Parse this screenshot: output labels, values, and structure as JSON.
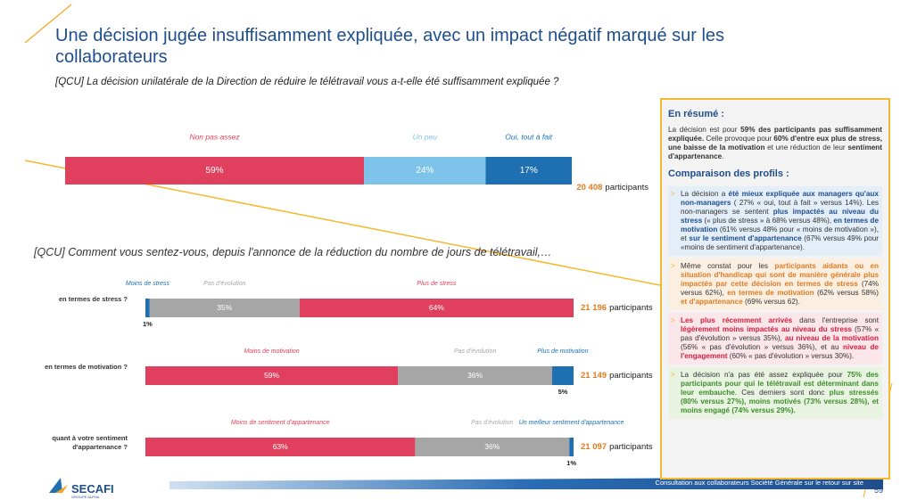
{
  "header": {
    "title": "Une décision jugée insuffisamment expliquée, avec un impact négatif marqué sur les collaborateurs",
    "question": "[QCU] La décision unilatérale de la Direction de réduire le télétravail vous a-t-elle été suffisamment expliquée ?"
  },
  "chart_data": [
    {
      "type": "stacked_bar",
      "rows": [
        {
          "label": null,
          "count": "20 408",
          "unit": "participants",
          "segments": [
            {
              "name": "Non pas assez",
              "color": "#e0405e",
              "value": 59,
              "value_label": "59%"
            },
            {
              "name": "Un peu",
              "color": "#7dc3ea",
              "value": 24,
              "value_label": "24%"
            },
            {
              "name": "Oui, tout à fait",
              "color": "#1f70b2",
              "value": 17,
              "value_label": "17%"
            }
          ]
        }
      ]
    },
    {
      "type": "stacked_bar",
      "question": "[QCU] Comment vous sentez-vous, depuis l'annonce de la réduction du nombre de jours de télétravail,…",
      "rows": [
        {
          "label": "en termes de stress ?",
          "count": "21 196",
          "unit": "participants",
          "segments": [
            {
              "name": "Moins de stress",
              "color": "#1f70b2",
              "value": 1,
              "value_label": "1%"
            },
            {
              "name": "Pas d'évolution",
              "color": "#a6a6a6",
              "value": 35,
              "value_label": "35%"
            },
            {
              "name": "Plus de stress",
              "color": "#e0405e",
              "value": 64,
              "value_label": "64%"
            }
          ]
        },
        {
          "label": "en termes de motivation ?",
          "count": "21 149",
          "unit": "participants",
          "segments": [
            {
              "name": "Moins de motivation",
              "color": "#e0405e",
              "value": 59,
              "value_label": "59%"
            },
            {
              "name": "Pas d'évolution",
              "color": "#a6a6a6",
              "value": 36,
              "value_label": "36%"
            },
            {
              "name": "Plus de motivation",
              "color": "#1f70b2",
              "value": 5,
              "value_label": "5%"
            }
          ]
        },
        {
          "label": "quant à votre sentiment d'appartenance ?",
          "count": "21 097",
          "unit": "participants",
          "segments": [
            {
              "name": "Moins de sentiment d'appartenance",
              "color": "#e0405e",
              "value": 63,
              "value_label": "63%"
            },
            {
              "name": "Pas d'évolution",
              "color": "#a6a6a6",
              "value": 36,
              "value_label": "36%"
            },
            {
              "name": "Un meilleur sentiment d'appartenance",
              "color": "#1f70b2",
              "value": 1,
              "value_label": "1%"
            }
          ]
        }
      ]
    }
  ],
  "summary": {
    "heading": "En résumé :",
    "intro": [
      {
        "text": "La décision est pour ",
        "style": "n"
      },
      {
        "text": "59% des participants pas suffisamment expliquée.",
        "style": "b"
      },
      {
        "text": " Celle provoque pour ",
        "style": "n"
      },
      {
        "text": "60% d'entre eux plus de stress, une baisse de la motivation",
        "style": "b"
      },
      {
        "text": " et une réduction de leur ",
        "style": "n"
      },
      {
        "text": "sentiment d'appartenance",
        "style": "b"
      },
      {
        "text": ".",
        "style": "n"
      }
    ],
    "subheading": "Comparaison des profils :",
    "bullets": [
      [
        {
          "text": "La décision a ",
          "style": "n"
        },
        {
          "text": "été mieux expliquée aux managers qu'aux non-managers",
          "style": "blue"
        },
        {
          "text": " ( 27% « oui, tout à fait » versus 14%). Les non-managers se sentent ",
          "style": "n"
        },
        {
          "text": "plus impactés au niveau du stress",
          "style": "blue"
        },
        {
          "text": " (« plus de stress » à 68% versus 48%), ",
          "style": "n"
        },
        {
          "text": "en termes de motivation",
          "style": "blue"
        },
        {
          "text": " (61% versus 48% pour « moins de motivation »), et ",
          "style": "n"
        },
        {
          "text": "sur le sentiment d'appartenance",
          "style": "blue"
        },
        {
          "text": " (67% versus 49% pour «moins de sentiment d'appartenance).",
          "style": "n"
        }
      ],
      [
        {
          "text": "Même constat pour les ",
          "style": "n"
        },
        {
          "text": "participants aidants ou en situation d'handicap qui sont de manière générale plus impactés par cette décision en termes de stress",
          "style": "orange"
        },
        {
          "text": " (74% versus 62%), ",
          "style": "n"
        },
        {
          "text": "en termes de motivation",
          "style": "orange"
        },
        {
          "text": " (62% versus 58%) ",
          "style": "n"
        },
        {
          "text": "et d'appartenance",
          "style": "orange"
        },
        {
          "text": " (69% versus 62).",
          "style": "n"
        }
      ],
      [
        {
          "text": "Les plus récemment arrivés",
          "style": "red"
        },
        {
          "text": " dans l'entreprise sont ",
          "style": "n"
        },
        {
          "text": "légèrement moins impactés au niveau du stress",
          "style": "red"
        },
        {
          "text": " (57% « pas d'évolution » versus 35%), ",
          "style": "n"
        },
        {
          "text": "au niveau de la motivation",
          "style": "red"
        },
        {
          "text": " (56% « pas d'évolution » versus 36%), et au ",
          "style": "n"
        },
        {
          "text": "niveau de l'engagement",
          "style": "red"
        },
        {
          "text": " (60% « pas d'évolution » versus 30%).",
          "style": "n"
        }
      ],
      [
        {
          "text": "La décision n'a pas été assez expliquée pour ",
          "style": "n"
        },
        {
          "text": "75% des participants pour qui le télétravail est déterminant dans leur embauche",
          "style": "green"
        },
        {
          "text": ". Ces derniers sont donc ",
          "style": "n"
        },
        {
          "text": "plus stressés (80% versus 27%), moins motivés (73% versus 28%), et moins engagé (74% versus 29%).",
          "style": "green"
        }
      ]
    ]
  },
  "footer": {
    "logo": "SECAFI",
    "logo_sub": "GROUPE ALPHA",
    "caption": "Consultation aux collaborateurs Société Générale sur le retour sur site",
    "page": "59"
  }
}
